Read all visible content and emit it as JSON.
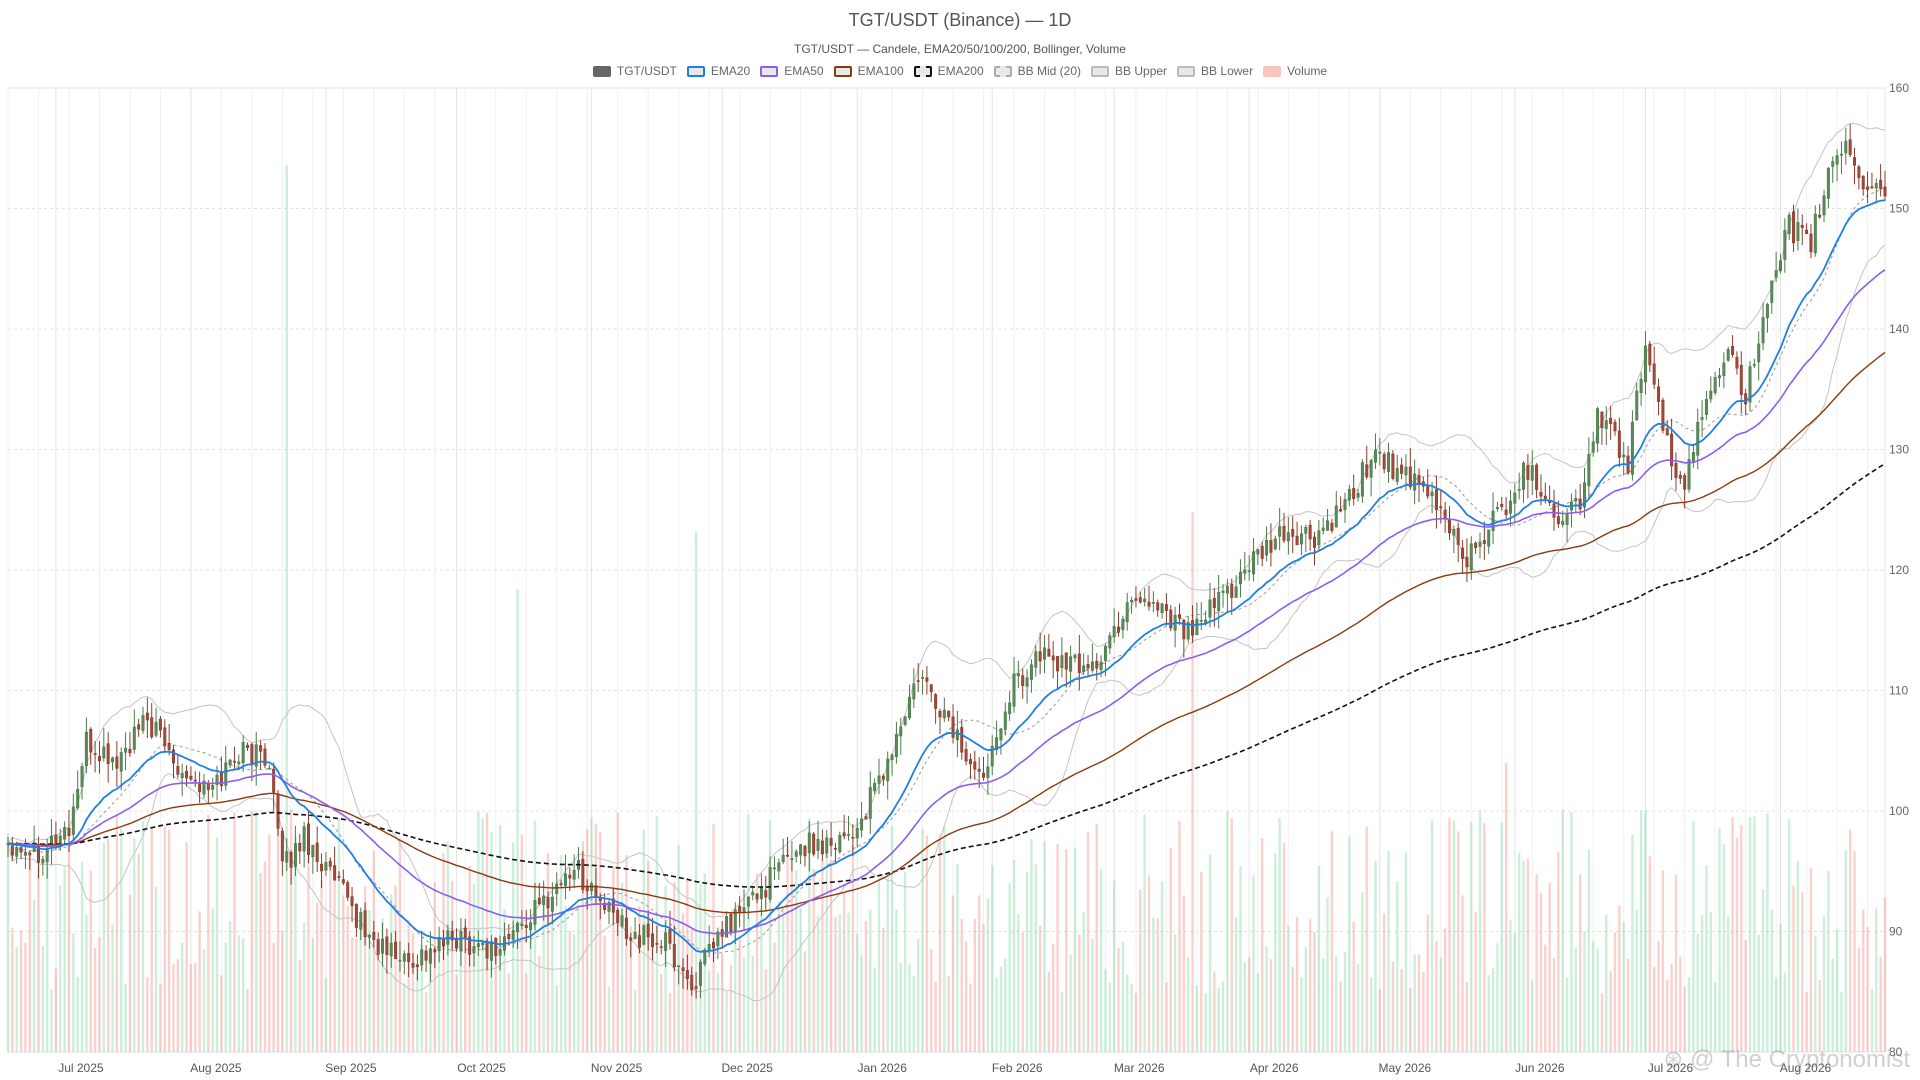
{
  "chart_data": {
    "type": "candlestick",
    "title": "TGT/USDT (Binance) — 1D",
    "subtitle": "TGT/USDT — Candele, EMA20/50/100/200, Bollinger, Volume",
    "legend": [
      {
        "name": "TGT/USDT",
        "color": "#666666",
        "style": "solid"
      },
      {
        "name": "EMA20",
        "color": "#1f7fe5",
        "style": "solid"
      },
      {
        "name": "EMA50",
        "color": "#8b5cf6",
        "style": "solid"
      },
      {
        "name": "EMA100",
        "color": "#8b3a0f",
        "style": "solid"
      },
      {
        "name": "EMA200",
        "color": "#111111",
        "style": "dashed"
      },
      {
        "name": "BB Mid (20)",
        "color": "#aaaaaa",
        "style": "dashed"
      },
      {
        "name": "BB Upper",
        "color": "#bbbbbb",
        "style": "solid"
      },
      {
        "name": "BB Lower",
        "color": "#bbbbbb",
        "style": "solid"
      },
      {
        "name": "Volume",
        "color": "#f4a9a0",
        "style": "solid"
      }
    ],
    "x_tick_labels": [
      "Jul 2025",
      "Aug 2025",
      "Sep 2025",
      "Oct 2025",
      "Nov 2025",
      "Dec 2025",
      "Jan 2026",
      "Feb 2026",
      "Mar 2026",
      "Apr 2026",
      "May 2026",
      "Jun 2026",
      "Jul 2026",
      "Aug 2026"
    ],
    "y_axis": {
      "side": "right",
      "ylim": [
        80,
        160
      ],
      "ticks": [
        80,
        90,
        100,
        110,
        120,
        130,
        140,
        150,
        160
      ]
    },
    "grid": true,
    "date_range": [
      "2025-06-20",
      "2026-08-25"
    ],
    "close_anchors": [
      [
        "2025-06-20",
        97.5
      ],
      [
        "2025-06-27",
        96.8
      ],
      [
        "2025-07-04",
        98.5
      ],
      [
        "2025-07-08",
        105.5
      ],
      [
        "2025-07-15",
        104.0
      ],
      [
        "2025-07-22",
        107.5
      ],
      [
        "2025-07-29",
        104.0
      ],
      [
        "2025-08-05",
        101.5
      ],
      [
        "2025-08-12",
        105.0
      ],
      [
        "2025-08-19",
        104.5
      ],
      [
        "2025-08-22",
        95.0
      ],
      [
        "2025-08-27",
        98.0
      ],
      [
        "2025-09-05",
        93.0
      ],
      [
        "2025-09-12",
        89.0
      ],
      [
        "2025-09-20",
        87.5
      ],
      [
        "2025-10-01",
        89.5
      ],
      [
        "2025-10-10",
        88.5
      ],
      [
        "2025-10-20",
        92.0
      ],
      [
        "2025-10-28",
        95.5
      ],
      [
        "2025-11-05",
        91.5
      ],
      [
        "2025-11-12",
        89.5
      ],
      [
        "2025-11-18",
        89.0
      ],
      [
        "2025-11-24",
        85.5
      ],
      [
        "2025-12-01",
        90.0
      ],
      [
        "2025-12-10",
        93.5
      ],
      [
        "2025-12-18",
        97.0
      ],
      [
        "2025-12-25",
        97.5
      ],
      [
        "2026-01-01",
        98.5
      ],
      [
        "2026-01-08",
        104.0
      ],
      [
        "2026-01-15",
        111.0
      ],
      [
        "2026-01-22",
        107.5
      ],
      [
        "2026-01-29",
        102.5
      ],
      [
        "2026-02-05",
        110.0
      ],
      [
        "2026-02-12",
        113.0
      ],
      [
        "2026-02-19",
        112.0
      ],
      [
        "2026-02-26",
        112.5
      ],
      [
        "2026-03-05",
        118.0
      ],
      [
        "2026-03-12",
        117.0
      ],
      [
        "2026-03-19",
        114.5
      ],
      [
        "2026-03-26",
        118.0
      ],
      [
        "2026-04-02",
        120.5
      ],
      [
        "2026-04-09",
        123.0
      ],
      [
        "2026-04-16",
        122.5
      ],
      [
        "2026-04-23",
        125.0
      ],
      [
        "2026-04-30",
        130.0
      ],
      [
        "2026-05-07",
        127.5
      ],
      [
        "2026-05-14",
        125.5
      ],
      [
        "2026-05-21",
        121.0
      ],
      [
        "2026-05-28",
        124.5
      ],
      [
        "2026-06-04",
        128.5
      ],
      [
        "2026-06-11",
        124.5
      ],
      [
        "2026-06-16",
        125.5
      ],
      [
        "2026-06-20",
        133.0
      ],
      [
        "2026-06-27",
        129.0
      ],
      [
        "2026-07-01",
        139.0
      ],
      [
        "2026-07-05",
        131.0
      ],
      [
        "2026-07-10",
        127.0
      ],
      [
        "2026-07-15",
        134.0
      ],
      [
        "2026-07-20",
        139.0
      ],
      [
        "2026-07-24",
        134.5
      ],
      [
        "2026-07-29",
        141.5
      ],
      [
        "2026-08-03",
        148.5
      ],
      [
        "2026-08-08",
        147.0
      ],
      [
        "2026-08-12",
        153.0
      ],
      [
        "2026-08-16",
        155.5
      ],
      [
        "2026-08-20",
        152.0
      ],
      [
        "2026-08-25",
        151.5
      ]
    ],
    "volume_hint": {
      "typical_bar_fraction_of_plot": 0.12,
      "notable_spikes": [
        [
          "2025-08-23",
          0.92
        ],
        [
          "2025-11-25",
          0.54
        ],
        [
          "2026-03-19",
          0.56
        ],
        [
          "2026-05-30",
          0.3
        ],
        [
          "2025-10-15",
          0.48
        ]
      ]
    }
  },
  "watermark": "⊛ @ The Cryptonomist"
}
